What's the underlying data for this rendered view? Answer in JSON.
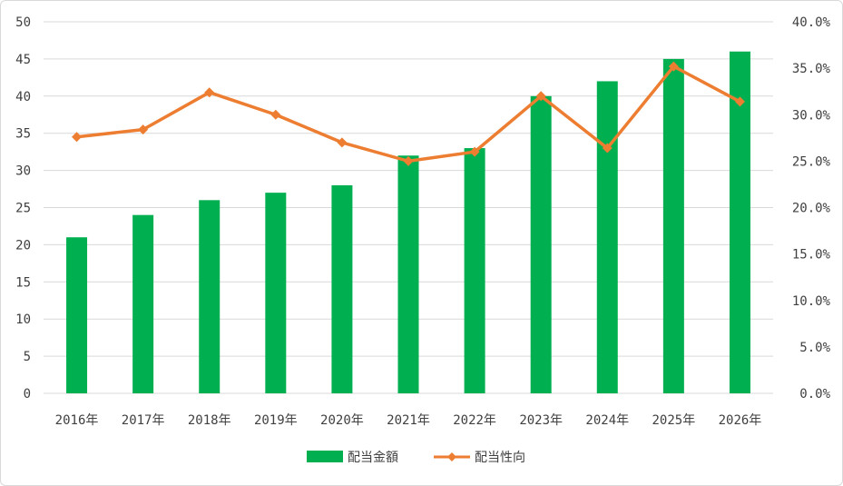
{
  "chart_data": {
    "type": "bar",
    "categories": [
      "2016年",
      "2017年",
      "2018年",
      "2019年",
      "2020年",
      "2021年",
      "2022年",
      "2023年",
      "2024年",
      "2025年",
      "2026年"
    ],
    "series": [
      {
        "name": "配当金額",
        "type": "bar",
        "axis": "left",
        "color": "#00b050",
        "values": [
          21,
          24,
          26,
          27,
          28,
          32,
          33,
          40,
          42,
          45,
          46
        ]
      },
      {
        "name": "配当性向",
        "type": "line",
        "axis": "right",
        "color": "#ed7d31",
        "values": [
          27.6,
          28.4,
          32.4,
          30.0,
          27.0,
          25.0,
          26.0,
          32.0,
          26.4,
          35.2,
          31.4
        ]
      }
    ],
    "ylim_left": [
      0,
      50
    ],
    "yticks_left": [
      "0",
      "5",
      "10",
      "15",
      "20",
      "25",
      "30",
      "35",
      "40",
      "45",
      "50"
    ],
    "ylim_right": [
      0,
      40
    ],
    "yticks_right": [
      "0.0%",
      "5.0%",
      "10.0%",
      "15.0%",
      "20.0%",
      "25.0%",
      "30.0%",
      "35.0%",
      "40.0%"
    ],
    "grid": true,
    "legend_position": "bottom"
  }
}
